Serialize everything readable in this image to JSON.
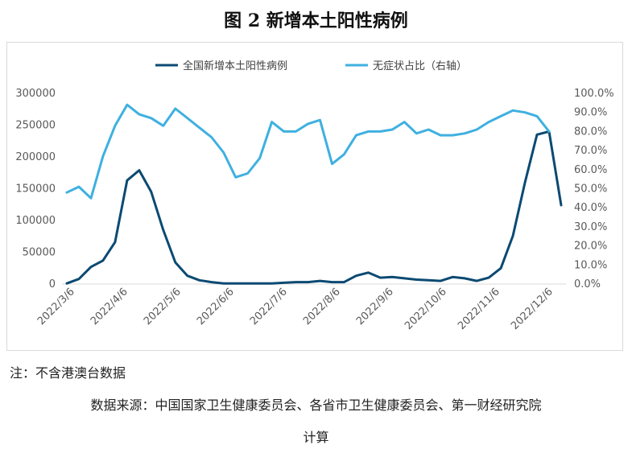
{
  "title": "图 2  新增本土阳性病例",
  "note": "注：不含港澳台数据",
  "source_line1": "数据来源：中国国家卫生健康委员会、各省市卫生健康委员会、第一财经研究院",
  "source_line2": "计算",
  "colors": {
    "cases": "#0b4a72",
    "ratio": "#3fb0e0",
    "axis": "#d9d9d9"
  },
  "chart_data": {
    "type": "line",
    "legend": [
      "全国新增本土阳性病例",
      "无症状占比（右轴）"
    ],
    "legend_position": "top",
    "grid": false,
    "x_ticks": [
      "2022/3/6",
      "2022/4/6",
      "2022/5/6",
      "2022/6/6",
      "2022/7/6",
      "2022/8/6",
      "2022/9/6",
      "2022/10/6",
      "2022/11/6",
      "2022/12/6"
    ],
    "y_left": {
      "ticks": [
        "0",
        "50000",
        "100000",
        "150000",
        "200000",
        "250000",
        "300000"
      ],
      "lim": [
        0,
        300000
      ]
    },
    "y_right": {
      "ticks": [
        "0.0%",
        "10.0%",
        "20.0%",
        "30.0%",
        "40.0%",
        "50.0%",
        "60.0%",
        "70.0%",
        "80.0%",
        "90.0%",
        "100.0%"
      ],
      "lim": [
        0,
        1
      ]
    },
    "series": [
      {
        "name": "全国新增本土阳性病例",
        "axis": "left",
        "values": [
          1000,
          8000,
          27000,
          37000,
          66000,
          163000,
          179000,
          145000,
          85000,
          34000,
          13000,
          6000,
          3000,
          1000,
          1000,
          1000,
          1000,
          1000,
          2000,
          3000,
          3000,
          5000,
          3000,
          3000,
          13000,
          18000,
          10000,
          11000,
          9000,
          7000,
          6000,
          5000,
          11000,
          9000,
          5000,
          10000,
          25000,
          76000,
          160000,
          235000,
          240000,
          124000
        ]
      },
      {
        "name": "无症状占比（右轴）",
        "axis": "right",
        "values": [
          0.48,
          0.51,
          0.45,
          0.67,
          0.83,
          0.94,
          0.89,
          0.87,
          0.83,
          0.92,
          0.87,
          0.82,
          0.77,
          0.69,
          0.56,
          0.58,
          0.66,
          0.85,
          0.8,
          0.8,
          0.84,
          0.86,
          0.63,
          0.68,
          0.78,
          0.8,
          0.8,
          0.81,
          0.85,
          0.79,
          0.81,
          0.78,
          0.78,
          0.79,
          0.81,
          0.85,
          0.88,
          0.91,
          0.9,
          0.88,
          0.8
        ]
      }
    ]
  }
}
